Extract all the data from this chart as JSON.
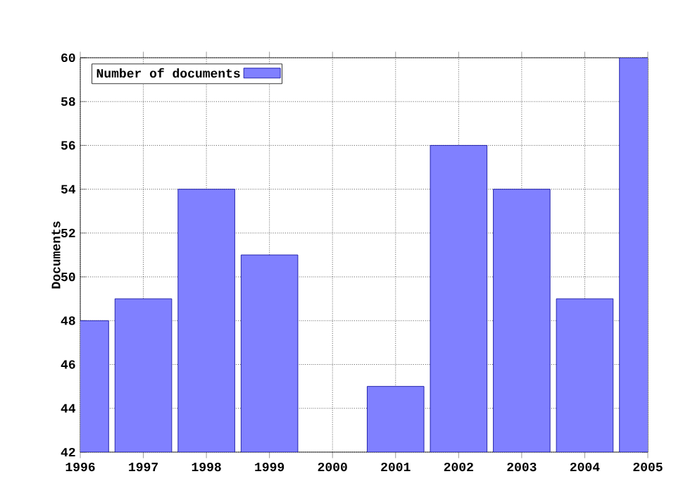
{
  "chart_data": {
    "type": "bar",
    "ylabel": "Documents",
    "x": [
      1996,
      1997,
      1998,
      1999,
      2000,
      2001,
      2002,
      2003,
      2004,
      2005
    ],
    "series": [
      {
        "name": "Number of documents",
        "color": "#8080ff",
        "values": [
          48,
          49,
          54,
          51,
          null,
          45,
          56,
          54,
          49,
          60
        ]
      }
    ],
    "xlim": [
      1996,
      2005
    ],
    "xticks": [
      1996,
      1997,
      1998,
      1999,
      2000,
      2001,
      2002,
      2003,
      2004,
      2005
    ],
    "ylim": [
      42,
      60
    ],
    "yticks": [
      42,
      44,
      46,
      48,
      50,
      52,
      54,
      56,
      58,
      60
    ],
    "grid": true,
    "legend": "top left",
    "line_style": "dotted"
  }
}
